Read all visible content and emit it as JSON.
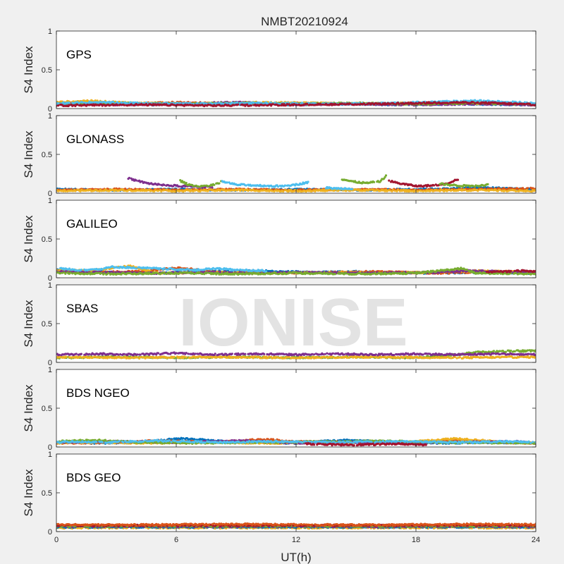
{
  "chart_data": {
    "type": "scatter",
    "title": "NMBT20210924",
    "xlabel": "UT(h)",
    "ylabel": "S4 Index",
    "xlim": [
      0,
      24
    ],
    "xticks": [
      0,
      6,
      12,
      18,
      24
    ],
    "xtick_labels": [
      "0",
      "6",
      "12",
      "18",
      "24"
    ],
    "ylim": [
      0,
      1
    ],
    "yticks": [
      0,
      0.5,
      1
    ],
    "ytick_labels": [
      "0",
      "0.5",
      "1"
    ],
    "grid": false,
    "watermark": "IONISE",
    "series_colors": [
      "#0072BD",
      "#D95319",
      "#EDB120",
      "#7E2F8E",
      "#77AC30",
      "#4DBEEE",
      "#A2142F"
    ],
    "panels": [
      {
        "name": "GPS",
        "traces": [
          {
            "color": "#0072BD",
            "x": [
              0,
              2.5,
              5,
              8,
              11,
              14,
              17,
              20,
              24
            ],
            "y": [
              0.05,
              0.06,
              0.05,
              0.06,
              0.05,
              0.06,
              0.05,
              0.06,
              0.05
            ]
          },
          {
            "color": "#D95319",
            "x": [
              0,
              3,
              6,
              9,
              12,
              15,
              18,
              21,
              24
            ],
            "y": [
              0.07,
              0.06,
              0.08,
              0.06,
              0.07,
              0.06,
              0.07,
              0.08,
              0.06
            ]
          },
          {
            "color": "#EDB120",
            "x": [
              0,
              1.5,
              4,
              7,
              10,
              13,
              16,
              19,
              24
            ],
            "y": [
              0.08,
              0.1,
              0.07,
              0.06,
              0.08,
              0.07,
              0.06,
              0.07,
              0.06
            ]
          },
          {
            "color": "#7E2F8E",
            "x": [
              0,
              3,
              6,
              9,
              12,
              15,
              18,
              21,
              24
            ],
            "y": [
              0.06,
              0.05,
              0.06,
              0.08,
              0.05,
              0.06,
              0.05,
              0.06,
              0.05
            ]
          },
          {
            "color": "#77AC30",
            "x": [
              0,
              3,
              6,
              9,
              12,
              15,
              18,
              21,
              24
            ],
            "y": [
              0.06,
              0.07,
              0.06,
              0.07,
              0.06,
              0.07,
              0.06,
              0.07,
              0.06
            ]
          },
          {
            "color": "#4DBEEE",
            "x": [
              0,
              2,
              4,
              7,
              10,
              14,
              17,
              21,
              24
            ],
            "y": [
              0.07,
              0.08,
              0.07,
              0.06,
              0.07,
              0.06,
              0.07,
              0.1,
              0.07
            ]
          },
          {
            "color": "#A2142F",
            "x": [
              0,
              4,
              8,
              12,
              16,
              18,
              20,
              22,
              24
            ],
            "y": [
              0.04,
              0.05,
              0.04,
              0.05,
              0.06,
              0.07,
              0.08,
              0.07,
              0.05
            ]
          }
        ]
      },
      {
        "name": "GLONASS",
        "traces": [
          {
            "color": "#0072BD",
            "x": [
              0,
              3,
              6,
              9,
              12,
              15,
              18,
              20,
              21.5,
              24
            ],
            "y": [
              0.05,
              0.04,
              0.05,
              0.04,
              0.05,
              0.04,
              0.05,
              0.06,
              0.07,
              0.05
            ]
          },
          {
            "color": "#D95319",
            "x": [
              0,
              3,
              6,
              9,
              12,
              15,
              18,
              21,
              24
            ],
            "y": [
              0.04,
              0.05,
              0.04,
              0.05,
              0.04,
              0.05,
              0.04,
              0.05,
              0.06
            ]
          },
          {
            "color": "#EDB120",
            "x": [
              0,
              3,
              6,
              9,
              12,
              15,
              18,
              21,
              24
            ],
            "y": [
              0.03,
              0.04,
              0.03,
              0.04,
              0.03,
              0.04,
              0.03,
              0.04,
              0.03
            ]
          },
          {
            "color": "#7E2F8E",
            "x": [
              3.6,
              4.5,
              5.5,
              6.5,
              7.8
            ],
            "y": [
              0.19,
              0.13,
              0.1,
              0.09,
              0.08
            ]
          },
          {
            "color": "#77AC30",
            "x": [
              6.2,
              6.6,
              7.2,
              7.8,
              8.3
            ],
            "y": [
              0.16,
              0.11,
              0.09,
              0.1,
              0.15
            ]
          },
          {
            "color": "#4DBEEE",
            "x": [
              8.3,
              9,
              10,
              11,
              12,
              12.6
            ],
            "y": [
              0.15,
              0.11,
              0.1,
              0.09,
              0.11,
              0.14
            ]
          },
          {
            "color": "#4DBEEE",
            "x": [
              13.5,
              14,
              14.8
            ],
            "y": [
              0.07,
              0.06,
              0.06
            ]
          },
          {
            "color": "#77AC30",
            "x": [
              14.3,
              14.8,
              15.5,
              16.2,
              16.5
            ],
            "y": [
              0.18,
              0.15,
              0.13,
              0.15,
              0.22
            ]
          },
          {
            "color": "#A2142F",
            "x": [
              16.6,
              17.3,
              18.1,
              18.9,
              19.6,
              20.1
            ],
            "y": [
              0.16,
              0.12,
              0.09,
              0.1,
              0.13,
              0.18
            ]
          },
          {
            "color": "#77AC30",
            "x": [
              19.2,
              20,
              20.8,
              21.6
            ],
            "y": [
              0.12,
              0.1,
              0.09,
              0.11
            ]
          }
        ]
      },
      {
        "name": "GALILEO",
        "traces": [
          {
            "color": "#0072BD",
            "x": [
              0,
              1.5,
              3,
              5,
              7.5,
              10,
              13,
              15,
              17,
              19,
              21,
              24
            ],
            "y": [
              0.1,
              0.08,
              0.07,
              0.06,
              0.08,
              0.09,
              0.07,
              0.08,
              0.07,
              0.06,
              0.07,
              0.06
            ]
          },
          {
            "color": "#D95319",
            "x": [
              0,
              2,
              4,
              6.2,
              8,
              11,
              14,
              16,
              19,
              21,
              24
            ],
            "y": [
              0.08,
              0.07,
              0.08,
              0.13,
              0.07,
              0.06,
              0.07,
              0.08,
              0.06,
              0.07,
              0.08
            ]
          },
          {
            "color": "#EDB120",
            "x": [
              0,
              1.5,
              3.7,
              5,
              8,
              11,
              14,
              17,
              21,
              24
            ],
            "y": [
              0.1,
              0.09,
              0.15,
              0.06,
              0.07,
              0.06,
              0.07,
              0.06,
              0.09,
              0.07
            ]
          },
          {
            "color": "#7E2F8E",
            "x": [
              0,
              2,
              5,
              7.3,
              9,
              12,
              15,
              19,
              20.5,
              24
            ],
            "y": [
              0.08,
              0.07,
              0.06,
              0.07,
              0.06,
              0.07,
              0.06,
              0.07,
              0.09,
              0.07
            ]
          },
          {
            "color": "#77AC30",
            "x": [
              0,
              3,
              6,
              9,
              12,
              15,
              18,
              20.3,
              21,
              24
            ],
            "y": [
              0.06,
              0.05,
              0.06,
              0.05,
              0.06,
              0.05,
              0.06,
              0.12,
              0.06,
              0.05
            ]
          },
          {
            "color": "#4DBEEE",
            "x": [
              0.2,
              1,
              2.2,
              2.8,
              7,
              8,
              9,
              10.5
            ],
            "y": [
              0.12,
              0.1,
              0.11,
              0.14,
              0.1,
              0.12,
              0.1,
              0.09
            ]
          },
          {
            "color": "#A2142F",
            "x": [
              21.5,
              22.5,
              23.3,
              24
            ],
            "y": [
              0.07,
              0.08,
              0.09,
              0.08
            ]
          }
        ]
      },
      {
        "name": "SBAS",
        "traces": [
          {
            "color": "#77AC30",
            "x": [
              0,
              3,
              6,
              9,
              12,
              15,
              18,
              20,
              21,
              22,
              24
            ],
            "y": [
              0.06,
              0.07,
              0.06,
              0.07,
              0.06,
              0.07,
              0.06,
              0.1,
              0.13,
              0.14,
              0.15
            ]
          },
          {
            "color": "#EDB120",
            "x": [
              0,
              4,
              8,
              12,
              16,
              20,
              24
            ],
            "y": [
              0.07,
              0.06,
              0.07,
              0.06,
              0.07,
              0.06,
              0.07
            ]
          },
          {
            "color": "#7E2F8E",
            "x": [
              0,
              2,
              4,
              6,
              8,
              10,
              12,
              14,
              16,
              18,
              20,
              22,
              24
            ],
            "y": [
              0.1,
              0.11,
              0.1,
              0.12,
              0.1,
              0.11,
              0.1,
              0.11,
              0.1,
              0.11,
              0.1,
              0.11,
              0.1
            ]
          }
        ]
      },
      {
        "name": "BDS NGEO",
        "traces": [
          {
            "color": "#0072BD",
            "x": [
              0,
              2,
              4,
              6.3,
              9,
              12,
              14.3,
              17,
              19,
              22,
              24
            ],
            "y": [
              0.06,
              0.05,
              0.06,
              0.11,
              0.06,
              0.05,
              0.09,
              0.06,
              0.05,
              0.06,
              0.05
            ]
          },
          {
            "color": "#D95319",
            "x": [
              0,
              3,
              5,
              8,
              10.3,
              12,
              15,
              18,
              20.3,
              22,
              24
            ],
            "y": [
              0.05,
              0.06,
              0.08,
              0.06,
              0.1,
              0.07,
              0.06,
              0.05,
              0.09,
              0.06,
              0.05
            ]
          },
          {
            "color": "#EDB120",
            "x": [
              0,
              2,
              5,
              8,
              11,
              14,
              17,
              20,
              22,
              24
            ],
            "y": [
              0.05,
              0.06,
              0.05,
              0.06,
              0.05,
              0.06,
              0.05,
              0.11,
              0.07,
              0.05
            ]
          },
          {
            "color": "#7E2F8E",
            "x": [
              0,
              3,
              6,
              9.5,
              12,
              15,
              17.5,
              20,
              23,
              24
            ],
            "y": [
              0.06,
              0.07,
              0.06,
              0.08,
              0.05,
              0.06,
              0.05,
              0.06,
              0.07,
              0.05
            ]
          },
          {
            "color": "#77AC30",
            "x": [
              0,
              1.8,
              4,
              7,
              10,
              14.5,
              16,
              19,
              24
            ],
            "y": [
              0.07,
              0.09,
              0.06,
              0.05,
              0.06,
              0.07,
              0.08,
              0.06,
              0.05
            ]
          },
          {
            "color": "#4DBEEE",
            "x": [
              0,
              1,
              2.5,
              5,
              8,
              11,
              14,
              17,
              20,
              22.5,
              24
            ],
            "y": [
              0.06,
              0.07,
              0.06,
              0.08,
              0.06,
              0.07,
              0.06,
              0.07,
              0.06,
              0.07,
              0.06
            ]
          },
          {
            "color": "#A2142F",
            "x": [
              12.5,
              14,
              15.5,
              17,
              18.5
            ],
            "y": [
              0.04,
              0.03,
              0.03,
              0.04,
              0.03
            ]
          }
        ]
      },
      {
        "name": "BDS GEO",
        "traces": [
          {
            "color": "#EDB120",
            "x": [
              0,
              4,
              8,
              12,
              16,
              20,
              24
            ],
            "y": [
              0.05,
              0.05,
              0.05,
              0.05,
              0.05,
              0.05,
              0.05
            ]
          },
          {
            "color": "#0072BD",
            "x": [
              0,
              4,
              8,
              12,
              16,
              20,
              24
            ],
            "y": [
              0.06,
              0.06,
              0.06,
              0.06,
              0.06,
              0.06,
              0.06
            ]
          },
          {
            "color": "#7E2F8E",
            "x": [
              0,
              4,
              8,
              12,
              16,
              20,
              24
            ],
            "y": [
              0.065,
              0.07,
              0.065,
              0.07,
              0.065,
              0.07,
              0.065
            ]
          },
          {
            "color": "#77AC30",
            "x": [
              0,
              4,
              8,
              12,
              16,
              20,
              24
            ],
            "y": [
              0.07,
              0.075,
              0.07,
              0.075,
              0.07,
              0.075,
              0.07
            ]
          },
          {
            "color": "#A2142F",
            "x": [
              0,
              4,
              8,
              12,
              16,
              20,
              24
            ],
            "y": [
              0.08,
              0.08,
              0.08,
              0.08,
              0.08,
              0.085,
              0.08
            ]
          },
          {
            "color": "#D95319",
            "x": [
              0,
              3,
              6,
              9,
              12,
              15,
              18,
              21,
              24
            ],
            "y": [
              0.09,
              0.085,
              0.09,
              0.095,
              0.09,
              0.085,
              0.09,
              0.095,
              0.09
            ]
          }
        ]
      }
    ]
  }
}
